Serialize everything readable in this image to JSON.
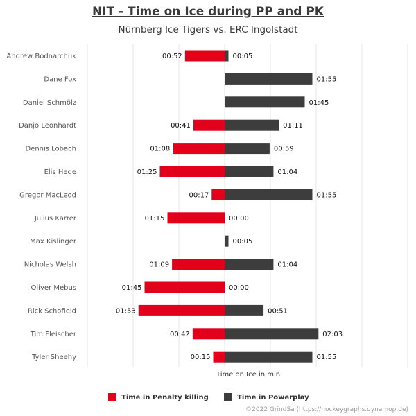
{
  "header": {
    "title": "NIT - Time on Ice during PP and PK",
    "subtitle": "Nürnberg Ice Tigers vs. ERC Ingolstadt"
  },
  "footer": {
    "credit": "©2022 GrindSa (https://hockeygraphs.dynamop.de)"
  },
  "colors": {
    "pk": "#e2001a",
    "pp": "#3d3d3d"
  },
  "chart_data": {
    "type": "bar",
    "orientation": "horizontal-diverging",
    "xlabel": "Time on Ice in min",
    "ylabel": "",
    "grid": true,
    "legend_position": "bottom-center",
    "categories": [
      "Andrew Bodnarchuk",
      "Dane Fox",
      "Daniel Schmölz",
      "Danjo Leonhardt",
      "Dennis Lobach",
      "Elis Hede",
      "Gregor MacLeod",
      "Julius Karrer",
      "Max Kislinger",
      "Nicholas Welsh",
      "Oliver Mebus",
      "Rick Schofield",
      "Tim Fleischer",
      "Tyler Sheehy"
    ],
    "series": [
      {
        "name": "Time in Penalty killing",
        "direction": "left",
        "seconds": [
          52,
          null,
          null,
          41,
          68,
          85,
          17,
          75,
          null,
          69,
          105,
          113,
          42,
          15
        ],
        "labels": [
          "00:52",
          "",
          "",
          "00:41",
          "01:08",
          "01:25",
          "00:17",
          "01:15",
          "",
          "01:09",
          "01:45",
          "01:53",
          "00:42",
          "00:15"
        ]
      },
      {
        "name": "Time in Powerplay",
        "direction": "right",
        "seconds": [
          5,
          115,
          105,
          71,
          59,
          64,
          115,
          0,
          5,
          64,
          0,
          51,
          123,
          115
        ],
        "labels": [
          "00:05",
          "01:55",
          "01:45",
          "01:11",
          "00:59",
          "01:04",
          "01:55",
          "00:00",
          "00:05",
          "01:04",
          "00:00",
          "00:51",
          "02:03",
          "01:55"
        ]
      }
    ]
  }
}
